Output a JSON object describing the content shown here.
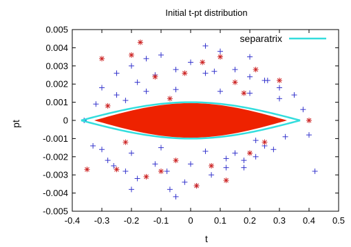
{
  "chart_data": {
    "type": "scatter",
    "title": "Initial t-pt distribution",
    "xlabel": "t",
    "ylabel": "pt",
    "xlim": [
      -0.4,
      0.5
    ],
    "ylim": [
      -0.005,
      0.005
    ],
    "xticks": [
      -0.4,
      -0.3,
      -0.2,
      -0.1,
      0,
      0.1,
      0.2,
      0.3,
      0.4,
      0.5
    ],
    "xtick_labels": [
      "-0.4",
      "-0.3",
      "-0.2",
      "-0.1",
      "0",
      "0.1",
      "0.2",
      "0.3",
      "0.4",
      "0.5"
    ],
    "yticks": [
      -0.005,
      -0.004,
      -0.003,
      -0.002,
      -0.001,
      0,
      0.001,
      0.002,
      0.003,
      0.004,
      0.005
    ],
    "ytick_labels": [
      "-0.005",
      "-0.004",
      "-0.003",
      "-0.002",
      "-0.001",
      "0",
      "0.001",
      "0.002",
      "0.003",
      "0.004",
      "0.005"
    ],
    "grid": false,
    "legend": {
      "position": "top-right",
      "entries": [
        "separatrix"
      ]
    },
    "colors": {
      "particles_plus": "#3333cc",
      "particles_star": "#cc2222",
      "separatrix": "#33dddd",
      "core_fill": "#ee2200"
    },
    "series": [
      {
        "marker": "plus",
        "color": "#3333cc",
        "x": [
          -0.36,
          -0.33,
          -0.3,
          -0.28,
          -0.25,
          -0.22,
          -0.2,
          -0.18,
          -0.15,
          -0.12,
          -0.1,
          -0.07,
          -0.05,
          -0.02,
          0,
          0.02,
          0.05,
          0.07,
          0.1,
          0.12,
          0.15,
          0.18,
          0.2,
          0.22,
          0.25,
          0.28,
          0.3,
          0.35,
          0.4,
          0.42,
          -0.3,
          -0.25,
          -0.2,
          -0.15,
          -0.1,
          -0.05,
          0.05,
          0.1,
          0.15,
          0.2,
          0.25,
          0.3,
          -0.26,
          -0.18,
          -0.08,
          0.08,
          0.18,
          0.26,
          -0.12,
          0.0,
          0.12,
          -0.22,
          0.22,
          0.32,
          -0.32,
          0.38,
          -0.2,
          0.2,
          -0.05,
          0.05
        ],
        "y": [
          0.0,
          -0.0014,
          0.0018,
          -0.0022,
          0.0026,
          -0.0028,
          0.003,
          -0.0032,
          0.0034,
          -0.0024,
          0.0036,
          -0.0038,
          0.0028,
          -0.0034,
          0.0032,
          -0.0036,
          0.0026,
          -0.003,
          0.0038,
          -0.0026,
          0.0028,
          -0.0022,
          0.0024,
          -0.002,
          0.0022,
          -0.0016,
          0.0018,
          0.0014,
          -0.0008,
          -0.0028,
          -0.0016,
          0.0014,
          -0.0018,
          0.0016,
          -0.0015,
          0.0017,
          -0.0017,
          0.0016,
          -0.0018,
          0.0015,
          -0.0014,
          0.0012,
          -0.0025,
          0.0021,
          -0.0028,
          0.0027,
          -0.0026,
          0.0022,
          0.0025,
          -0.0024,
          -0.0021,
          0.0011,
          -0.0011,
          -0.0009,
          0.0009,
          0.0006,
          -0.0038,
          0.0035,
          -0.0042,
          0.0041
        ]
      },
      {
        "marker": "star",
        "color": "#cc2222",
        "x": [
          -0.3,
          -0.28,
          -0.25,
          -0.2,
          -0.17,
          -0.15,
          -0.12,
          -0.1,
          -0.07,
          -0.05,
          -0.02,
          0.02,
          0.04,
          0.07,
          0.1,
          0.12,
          0.15,
          0.2,
          0.22,
          0.25,
          0.3,
          0.4,
          -0.35,
          -0.22,
          0.18
        ],
        "y": [
          0.0034,
          0.0008,
          -0.0027,
          0.0036,
          0.0043,
          -0.0031,
          0.0024,
          -0.0028,
          0.0012,
          -0.0022,
          0.0026,
          -0.0036,
          0.0032,
          -0.0025,
          0.0035,
          -0.0033,
          0.0021,
          -0.0018,
          0.0028,
          -0.0012,
          0.0022,
          0.0,
          -0.0027,
          -0.0012,
          0.0015
        ]
      }
    ],
    "separatrix": {
      "name": "separatrix",
      "t_half_width": 0.37,
      "pt_amplitude": 0.001,
      "shape": "lens"
    }
  }
}
